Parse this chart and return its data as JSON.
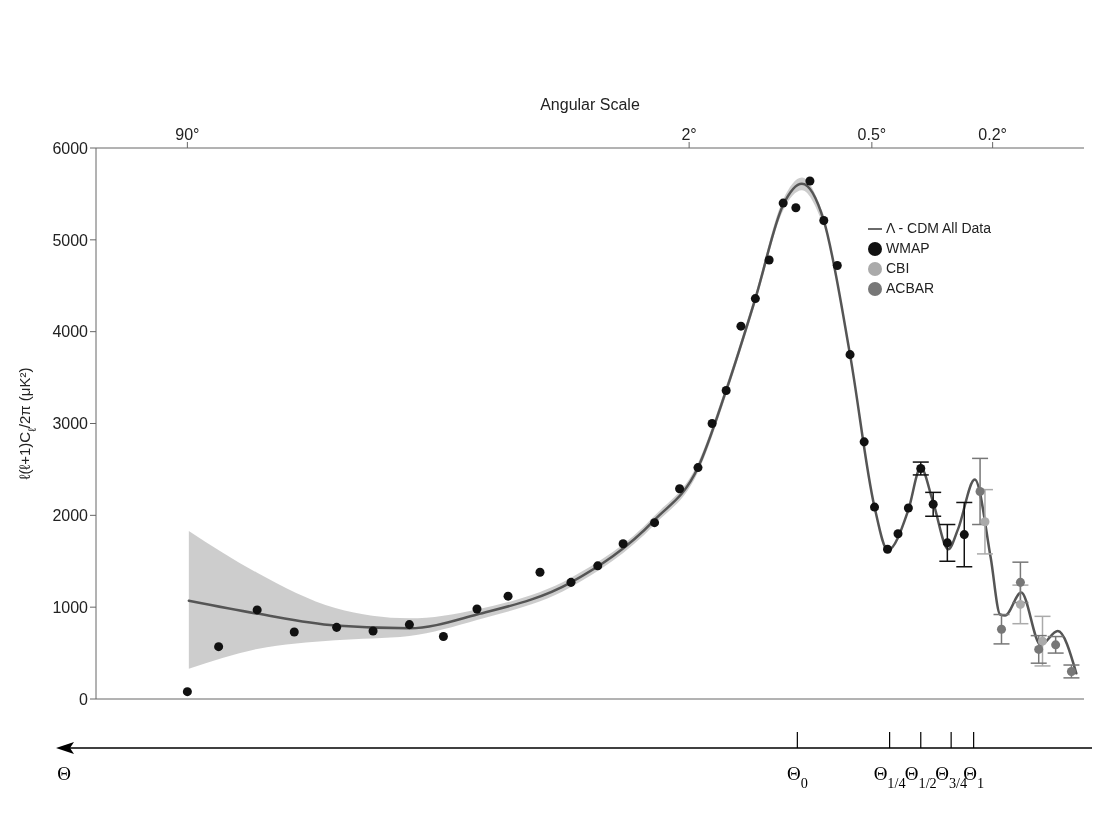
{
  "chart_data": {
    "type": "scatter",
    "xlabel": "Angular Scale",
    "ylabel": "ℓ(ℓ+1)C$_{ℓ}$/2π (μK²)",
    "log": "x",
    "xlim": [
      180,
      0.1
    ],
    "xticks": [
      {
        "value": 90,
        "label": "90°"
      },
      {
        "value": 2,
        "label": "2°"
      },
      {
        "value": 0.5,
        "label": "0.5°"
      },
      {
        "value": 0.2,
        "label": "0.2°"
      }
    ],
    "ylim": [
      0,
      6000
    ],
    "yticks": [
      0,
      1000,
      2000,
      3000,
      4000,
      5000,
      6000
    ],
    "grid": false,
    "legend": "right",
    "marker": "circle",
    "series": [
      {
        "name": "Λ - CDM All Data",
        "type": "line",
        "color": "#555555",
        "marker": "none",
        "x": [
          89,
          53,
          29.3,
          16.7,
          10,
          4.9,
          2.6,
          1.87,
          1.51,
          1.21,
          0.98,
          0.85,
          0.72,
          0.59,
          0.49,
          0.443,
          0.379,
          0.345,
          0.314,
          0.28,
          0.26,
          0.229,
          0.203,
          0.189,
          0.182,
          0.161,
          0.139,
          0.122,
          0.106
        ],
        "values": [
          1070,
          930,
          800,
          770,
          920,
          1270,
          1950,
          2520,
          3360,
          4360,
          5380,
          5610,
          5210,
          3750,
          2090,
          1620,
          2060,
          2520,
          2140,
          1630,
          1850,
          2390,
          1540,
          920,
          910,
          1160,
          590,
          740,
          280
        ],
        "lower": [
          330,
          544,
          640,
          687,
          860,
          1220,
          1900,
          2470,
          3310,
          4310,
          5320,
          5540,
          5150,
          null,
          null,
          null,
          null,
          null,
          null,
          null,
          null,
          null,
          null,
          null,
          null,
          null,
          null,
          null,
          null
        ],
        "upper": [
          1830,
          1374,
          990,
          878,
          975,
          1320,
          1995,
          2570,
          3410,
          4410,
          5440,
          5680,
          5270,
          null,
          null,
          null,
          null,
          null,
          null,
          null,
          null,
          null,
          null,
          null,
          null,
          null,
          null,
          null,
          null
        ]
      },
      {
        "name": "WMAP",
        "color": "#111111",
        "x": [
          90,
          71,
          53,
          40,
          29,
          22,
          16.7,
          12.9,
          10,
          7.9,
          6.2,
          4.9,
          4.0,
          3.3,
          2.6,
          2.15,
          1.87,
          1.68,
          1.51,
          1.35,
          1.21,
          1.09,
          0.98,
          0.89,
          0.8,
          0.72,
          0.65,
          0.59,
          0.53,
          0.49,
          0.444,
          0.41,
          0.379,
          0.345,
          0.314,
          0.282,
          0.248
        ],
        "values": [
          80,
          570,
          970,
          730,
          780,
          740,
          810,
          680,
          980,
          1120,
          1380,
          1270,
          1450,
          1690,
          1920,
          2290,
          2520,
          3000,
          3360,
          4060,
          4360,
          4780,
          5400,
          5350,
          5640,
          5210,
          4720,
          3750,
          2800,
          2090,
          1630,
          1800,
          2080,
          2510,
          2120,
          1700,
          1790
        ],
        "errors": [
          null,
          null,
          null,
          null,
          null,
          null,
          null,
          null,
          null,
          null,
          null,
          null,
          null,
          null,
          null,
          null,
          null,
          null,
          null,
          null,
          null,
          null,
          null,
          null,
          null,
          null,
          null,
          null,
          null,
          null,
          null,
          null,
          null,
          70,
          130,
          200,
          350
        ]
      },
      {
        "name": "CBI",
        "color": "#aaaaaa",
        "x": [
          0.212,
          0.162,
          0.137
        ],
        "values": [
          1930,
          1030,
          630
        ],
        "errors": [
          350,
          210,
          270
        ]
      },
      {
        "name": "ACBAR",
        "color": "#777777",
        "x": [
          0.22,
          0.187,
          0.162,
          0.141,
          0.124,
          0.11
        ],
        "values": [
          2260,
          760,
          1270,
          540,
          590,
          300
        ],
        "errors": [
          360,
          160,
          220,
          150,
          90,
          70
        ]
      }
    ],
    "annotations": [
      "Θ",
      {
        "text": "Θ$_{0}$",
        "x": 0.88
      },
      {
        "text": "Θ$_{1/4}$",
        "x": 0.437
      },
      {
        "text": "Θ$_{1/2}$",
        "x": 0.345
      },
      {
        "text": "Θ$_{3/4}$",
        "x": 0.274
      },
      {
        "text": "Θ$_{1}$",
        "x": 0.231
      }
    ]
  }
}
